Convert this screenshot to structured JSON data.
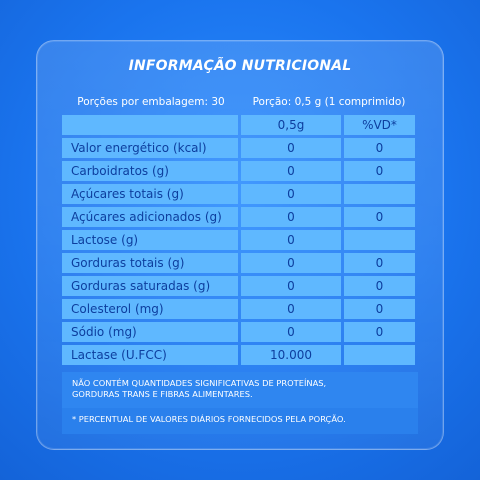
{
  "title": "INFORMAÇÃO NUTRICIONAL",
  "servings_label": "Porções por embalagem: 30",
  "portion_label": "Porção: 0,5 g (1 comprimido)",
  "header": {
    "col1": "",
    "col2": "0,5g",
    "col3": "%VD*"
  },
  "rows": [
    {
      "name": "Valor energético (kcal)",
      "value": "0",
      "vd": "0"
    },
    {
      "name": "Carboidratos (g)",
      "value": "0",
      "vd": "0"
    },
    {
      "name": "Açúcares totais (g)",
      "value": "0",
      "vd": ""
    },
    {
      "name": "Açúcares adicionados (g)",
      "value": "0",
      "vd": "0"
    },
    {
      "name": "Lactose (g)",
      "value": "0",
      "vd": ""
    },
    {
      "name": "Gorduras totais (g)",
      "value": "0",
      "vd": "0"
    },
    {
      "name": "Gorduras saturadas (g)",
      "value": "0",
      "vd": "0"
    },
    {
      "name": "Colesterol (mg)",
      "value": "0",
      "vd": "0"
    },
    {
      "name": "Sódio (mg)",
      "value": "0",
      "vd": "0"
    },
    {
      "name": "Lactase (U.FCC)",
      "value": "10.000",
      "vd": ""
    }
  ],
  "note1_line1": "NÃO CONTÉM QUANTIDADES SIGNIFICATIVAS DE PROTEÍNAS,",
  "note1_line2": "GORDURAS TRANS E FIBRAS ALIMENTARES.",
  "note2": "* PERCENTUAL DE VALORES DIÁRIOS FORNECIDOS PELA PORÇÃO."
}
